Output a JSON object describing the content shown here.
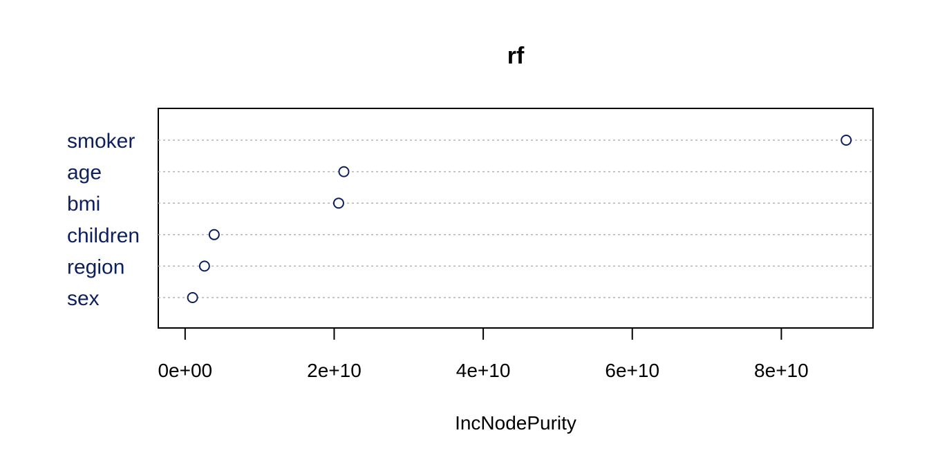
{
  "chart_data": {
    "type": "scatter",
    "title": "rf",
    "xlabel": "IncNodePurity",
    "ylabel": "",
    "xlim": [
      -3600000000.0,
      92300000000.0
    ],
    "xticks": [
      0,
      20000000000.0,
      40000000000.0,
      60000000000.0,
      80000000000.0
    ],
    "xtick_labels": [
      "0e+00",
      "2e+10",
      "4e+10",
      "6e+10",
      "8e+10"
    ],
    "categories": [
      "smoker",
      "age",
      "bmi",
      "children",
      "region",
      "sex"
    ],
    "values": [
      88700000000.0,
      21300000000.0,
      20600000000.0,
      3900000000.0,
      2600000000.0,
      1000000000.0
    ],
    "grid": "horizontal dotted lines per category",
    "colors": {
      "points": "#0d1f5c",
      "labels": "#0d1f5c",
      "grid": "#b3b3b3",
      "axis": "#000000"
    }
  }
}
